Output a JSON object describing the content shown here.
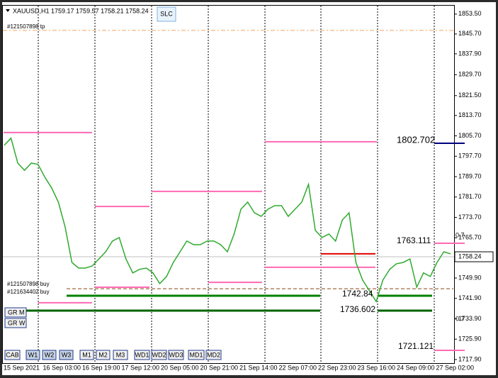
{
  "chart_data": {
    "type": "line",
    "color": "#2faa2f",
    "title": "XAUUSD,H1  1759.17 1759.57 1758.21 1758.24",
    "values": [
      1802.0,
      1804.8,
      1795.0,
      1792.2,
      1795.0,
      1794.5,
      1789.5,
      1785.3,
      1779.7,
      1770.0,
      1756.0,
      1753.8,
      1753.8,
      1754.6,
      1757.4,
      1760.2,
      1764.4,
      1765.8,
      1757.4,
      1751.9,
      1753.3,
      1753.8,
      1751.9,
      1747.7,
      1750.5,
      1756.0,
      1760.2,
      1764.4,
      1763.0,
      1763.0,
      1764.4,
      1764.4,
      1763.0,
      1760.2,
      1767.2,
      1776.9,
      1779.7,
      1775.5,
      1774.1,
      1776.9,
      1778.3,
      1778.3,
      1774.1,
      1776.9,
      1779.7,
      1786.7,
      1768.6,
      1765.8,
      1767.2,
      1764.4,
      1772.7,
      1775.5,
      1756.0,
      1749.1,
      1744.9,
      1740.7,
      1749.1,
      1753.3,
      1755.5,
      1756.0,
      1757.4,
      1746.3,
      1751.9,
      1750.5,
      1756.0,
      1760.2,
      1759.4
    ],
    "ylim": [
      1716.5,
      1856.8
    ],
    "yticks": [
      {
        "value": 1853.5,
        "label": "1853.50"
      },
      {
        "value": 1845.7,
        "label": "1845.70"
      },
      {
        "value": 1837.9,
        "label": "1837.90"
      },
      {
        "value": 1829.7,
        "label": "1829.70"
      },
      {
        "value": 1821.5,
        "label": "1821.50"
      },
      {
        "value": 1813.7,
        "label": "1813.70"
      },
      {
        "value": 1805.7,
        "label": "1805.70"
      },
      {
        "value": 1797.7,
        "label": "1797.70"
      },
      {
        "value": 1789.7,
        "label": "1789.70"
      },
      {
        "value": 1781.7,
        "label": "1781.70"
      },
      {
        "value": 1773.7,
        "label": "1773.70"
      },
      {
        "value": 1765.7,
        "label": "1765.70"
      },
      {
        "value": 1749.9,
        "label": "1749.90"
      },
      {
        "value": 1741.9,
        "label": "1741.90"
      },
      {
        "value": 1733.9,
        "label": "1733.90"
      },
      {
        "value": 1725.9,
        "label": "1725.90"
      },
      {
        "value": 1717.9,
        "label": "1717.90"
      }
    ],
    "xlabels": [
      "15 Sep 2021",
      "16 Sep 03:00",
      "16 Sep 19:00",
      "17 Sep 12:00",
      "20 Sep 05:00",
      "20 Sep 21:00",
      "21 Sep 14:00",
      "22 Sep 07:00",
      "22 Sep 23:00",
      "23 Sep 16:00",
      "24 Sep 09:00",
      "27 Sep 02:00"
    ],
    "current_price": {
      "value": 1758.24,
      "label": "1758.24"
    },
    "levels": [
      {
        "value": 1807.0,
        "color": "#ff69b4"
      },
      {
        "value": 1778.0,
        "color": "#ff69b4"
      },
      {
        "value": 1783.9,
        "color": "#ff69b4"
      },
      {
        "value": 1803.4,
        "color": "#ff69b4"
      },
      {
        "value": 1754.1,
        "color": "#ff69b4"
      },
      {
        "value": 1746.3,
        "color": "#ff69b4"
      },
      {
        "value": 1748.2,
        "color": "#ff69b4"
      },
      {
        "value": 1740.2,
        "color": "#ff69b4"
      },
      {
        "value": 1763.55,
        "color": "#ff69b4"
      },
      {
        "value": 1721.5,
        "color": "#ff69b4"
      },
      {
        "value": 1759.4,
        "color": "#e00000"
      },
      {
        "value": 1802.8,
        "color": "#000080"
      },
      {
        "value": 1742.95,
        "color": "#008000"
      },
      {
        "value": 1737.1,
        "color": "#006400"
      },
      {
        "value": 1847.1,
        "color": "#f4a460"
      },
      {
        "value": 1745.7,
        "color": "#8b4513"
      }
    ],
    "annotations": [
      "1802.702",
      "1763.111",
      "1742.84",
      "1736.602",
      "1721.121",
      "0.7",
      "0.7",
      "#121507898 tp",
      "#121507898 buy",
      "#121634402 buy"
    ],
    "buttons": [
      "CAB",
      "W1",
      "W2",
      "W3",
      "M1",
      "M2",
      "M3",
      "WD1",
      "WD2",
      "WD3",
      "MD1",
      "MD2"
    ],
    "side_buttons": [
      "GR M",
      "GR W"
    ],
    "top_button": "SLC"
  }
}
